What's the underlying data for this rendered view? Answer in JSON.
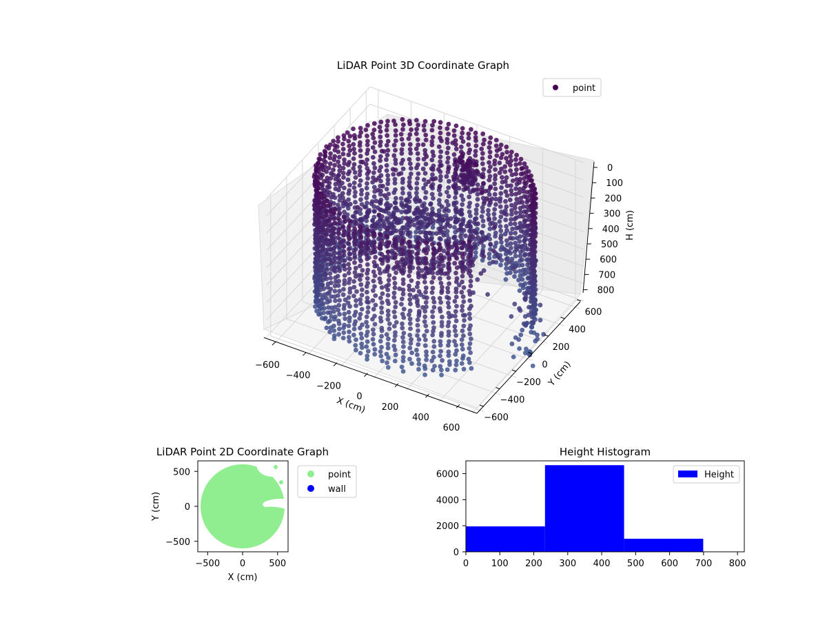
{
  "chart_data": [
    {
      "type": "scatter3d",
      "title": "LiDAR Point 3D Coordinate Graph",
      "xlabel": "X (cm)",
      "ylabel": "Y (cm)",
      "zlabel": "H (cm)",
      "legend": [
        "point"
      ],
      "legend_position": "top-right",
      "x_ticks": [
        "−600",
        "−400",
        "−200",
        "0",
        "200",
        "400",
        "600"
      ],
      "y_ticks": [
        "−600",
        "−400",
        "−200",
        "0",
        "200",
        "400",
        "600"
      ],
      "z_ticks": [
        "0",
        "100",
        "200",
        "300",
        "400",
        "500",
        "600",
        "700",
        "800"
      ],
      "xlim": [
        -650,
        650
      ],
      "ylim": [
        -650,
        650
      ],
      "zlim": [
        0,
        820
      ],
      "z_inverted": true,
      "colormap": "viridis",
      "structure": {
        "wall_radius": 600,
        "wall_height": [
          0,
          780
        ],
        "opening_angle_deg": [
          -40,
          10
        ],
        "floor_radius": 380,
        "floor_height": 360
      }
    },
    {
      "type": "scatter",
      "title": "LiDAR Point 2D Coordinate Graph",
      "xlabel": "X (cm)",
      "ylabel": "Y (cm)",
      "x_ticks": [
        "−500",
        "0",
        "500"
      ],
      "y_ticks": [
        "−500",
        "0",
        "500"
      ],
      "xlim": [
        -650,
        650
      ],
      "ylim": [
        -650,
        650
      ],
      "legend_position": "outside-right",
      "series": [
        {
          "name": "point",
          "color": "#90ee90"
        },
        {
          "name": "wall",
          "color": "#0000ff"
        }
      ]
    },
    {
      "type": "bar",
      "title": "Height Histogram",
      "legend": [
        "Height"
      ],
      "legend_position": "top-right",
      "color": "#0000ff",
      "bins": [
        {
          "start": 0,
          "end": 233,
          "count": 1950
        },
        {
          "start": 233,
          "end": 466,
          "count": 6650
        },
        {
          "start": 466,
          "end": 699,
          "count": 1000
        }
      ],
      "x_ticks": [
        "0",
        "100",
        "200",
        "300",
        "400",
        "500",
        "600",
        "700",
        "800"
      ],
      "y_ticks": [
        "0",
        "2000",
        "4000",
        "6000"
      ],
      "xlim": [
        0,
        820
      ],
      "ylim": [
        0,
        6980
      ]
    }
  ]
}
